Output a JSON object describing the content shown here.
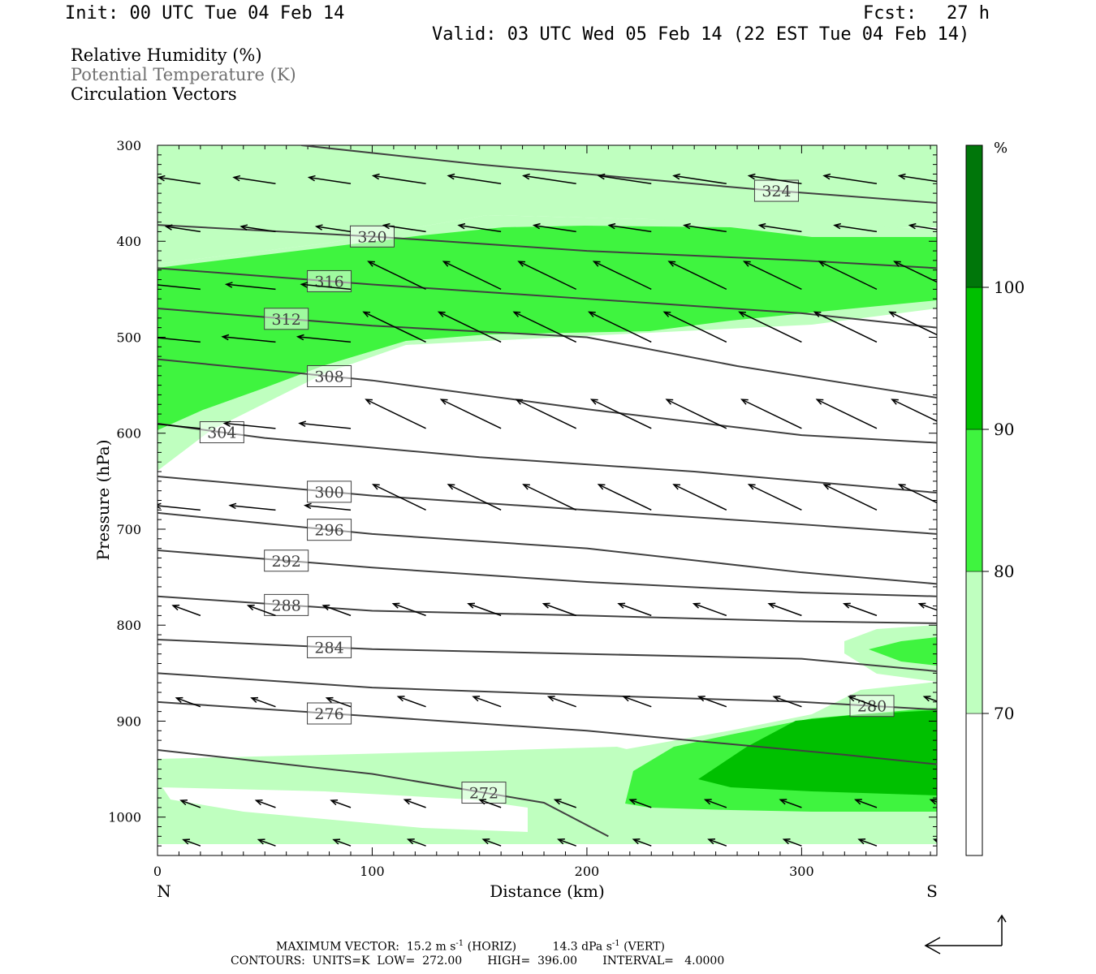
{
  "header": {
    "init": "Init: 00 UTC Tue 04 Feb 14",
    "fcst_label": "Fcst:",
    "fcst_value": "27 h",
    "valid": "Valid: 03 UTC Wed 05 Feb 14 (22 EST Tue 04 Feb 14)"
  },
  "legend": {
    "items": [
      {
        "label": "Relative Humidity (%)",
        "color": "#000000"
      },
      {
        "label": "Potential Temperature (K)",
        "color": "#707070"
      },
      {
        "label": "Circulation Vectors",
        "color": "#000000"
      }
    ]
  },
  "chart_data": {
    "type": "contour",
    "xlabel": "Distance (km)",
    "ylabel": "Pressure (hPa)",
    "x_ticks": [
      "0",
      "100",
      "200",
      "300"
    ],
    "y_ticks": [
      "300",
      "400",
      "500",
      "600",
      "700",
      "800",
      "900",
      "1000"
    ],
    "xlim": [
      0,
      363
    ],
    "ylim": [
      1040,
      300
    ],
    "left_end_label": "N",
    "right_end_label": "S",
    "colorbar": {
      "unit": "%",
      "levels": [
        70,
        80,
        90,
        100
      ],
      "colors": [
        "#ffffff",
        "#bfffbf",
        "#3ff43f",
        "#00c000",
        "#00760a"
      ],
      "labels": [
        "70",
        "80",
        "90",
        "100"
      ]
    },
    "theta_contours": [
      {
        "value": 324,
        "label": "324",
        "points": [
          [
            67,
            300
          ],
          [
            150,
            320
          ],
          [
            280,
            346
          ],
          [
            363,
            360
          ]
        ]
      },
      {
        "value": 320,
        "label": "320",
        "points": [
          [
            0,
            383
          ],
          [
            100,
            395
          ],
          [
            200,
            410
          ],
          [
            300,
            420
          ],
          [
            363,
            428
          ]
        ]
      },
      {
        "value": 316,
        "label": "316",
        "points": [
          [
            0,
            428
          ],
          [
            100,
            445
          ],
          [
            200,
            460
          ],
          [
            300,
            475
          ],
          [
            363,
            490
          ]
        ]
      },
      {
        "value": 312,
        "label": "312",
        "points": [
          [
            0,
            470
          ],
          [
            100,
            488
          ],
          [
            200,
            500
          ],
          [
            270,
            530
          ],
          [
            363,
            563
          ]
        ]
      },
      {
        "value": 308,
        "label": "308",
        "points": [
          [
            0,
            523
          ],
          [
            100,
            545
          ],
          [
            200,
            575
          ],
          [
            300,
            602
          ],
          [
            363,
            610
          ]
        ]
      },
      {
        "value": 304,
        "label": "304",
        "points": [
          [
            0,
            590
          ],
          [
            50,
            605
          ],
          [
            150,
            625
          ],
          [
            250,
            640
          ],
          [
            363,
            662
          ]
        ]
      },
      {
        "value": 300,
        "label": "300",
        "points": [
          [
            0,
            645
          ],
          [
            100,
            665
          ],
          [
            200,
            680
          ],
          [
            300,
            695
          ],
          [
            363,
            705
          ]
        ]
      },
      {
        "value": 296,
        "label": "296",
        "points": [
          [
            0,
            683
          ],
          [
            100,
            705
          ],
          [
            200,
            720
          ],
          [
            300,
            745
          ],
          [
            363,
            757
          ]
        ]
      },
      {
        "value": 292,
        "label": "292",
        "points": [
          [
            0,
            722
          ],
          [
            100,
            740
          ],
          [
            200,
            755
          ],
          [
            300,
            766
          ],
          [
            363,
            770
          ]
        ]
      },
      {
        "value": 288,
        "label": "288",
        "points": [
          [
            0,
            770
          ],
          [
            100,
            785
          ],
          [
            200,
            790
          ],
          [
            300,
            796
          ],
          [
            363,
            798
          ]
        ]
      },
      {
        "value": 284,
        "label": "284",
        "points": [
          [
            0,
            815
          ],
          [
            100,
            825
          ],
          [
            200,
            830
          ],
          [
            300,
            835
          ],
          [
            363,
            848
          ]
        ]
      },
      {
        "value": 280,
        "label": "280",
        "points": [
          [
            0,
            850
          ],
          [
            100,
            865
          ],
          [
            200,
            873
          ],
          [
            300,
            880
          ],
          [
            363,
            888
          ]
        ]
      },
      {
        "value": 276,
        "label": "276",
        "points": [
          [
            0,
            880
          ],
          [
            100,
            895
          ],
          [
            200,
            910
          ],
          [
            320,
            935
          ],
          [
            363,
            945
          ]
        ]
      },
      {
        "value": 272,
        "label": "272",
        "points": [
          [
            0,
            930
          ],
          [
            100,
            955
          ],
          [
            180,
            985
          ],
          [
            210,
            1020
          ]
        ]
      }
    ],
    "max_vector_text": "MAXIMUM VECTOR:  15.2 m s",
    "max_vector_exp": "-1",
    "max_vector_mid": " (HORIZ)          14.3 dPa s",
    "max_vector_end": " (VERT)",
    "contours_text": "CONTOURS:  UNITS=K  LOW=  272.00       HIGH=  396.00       INTERVAL=   4.0000"
  }
}
